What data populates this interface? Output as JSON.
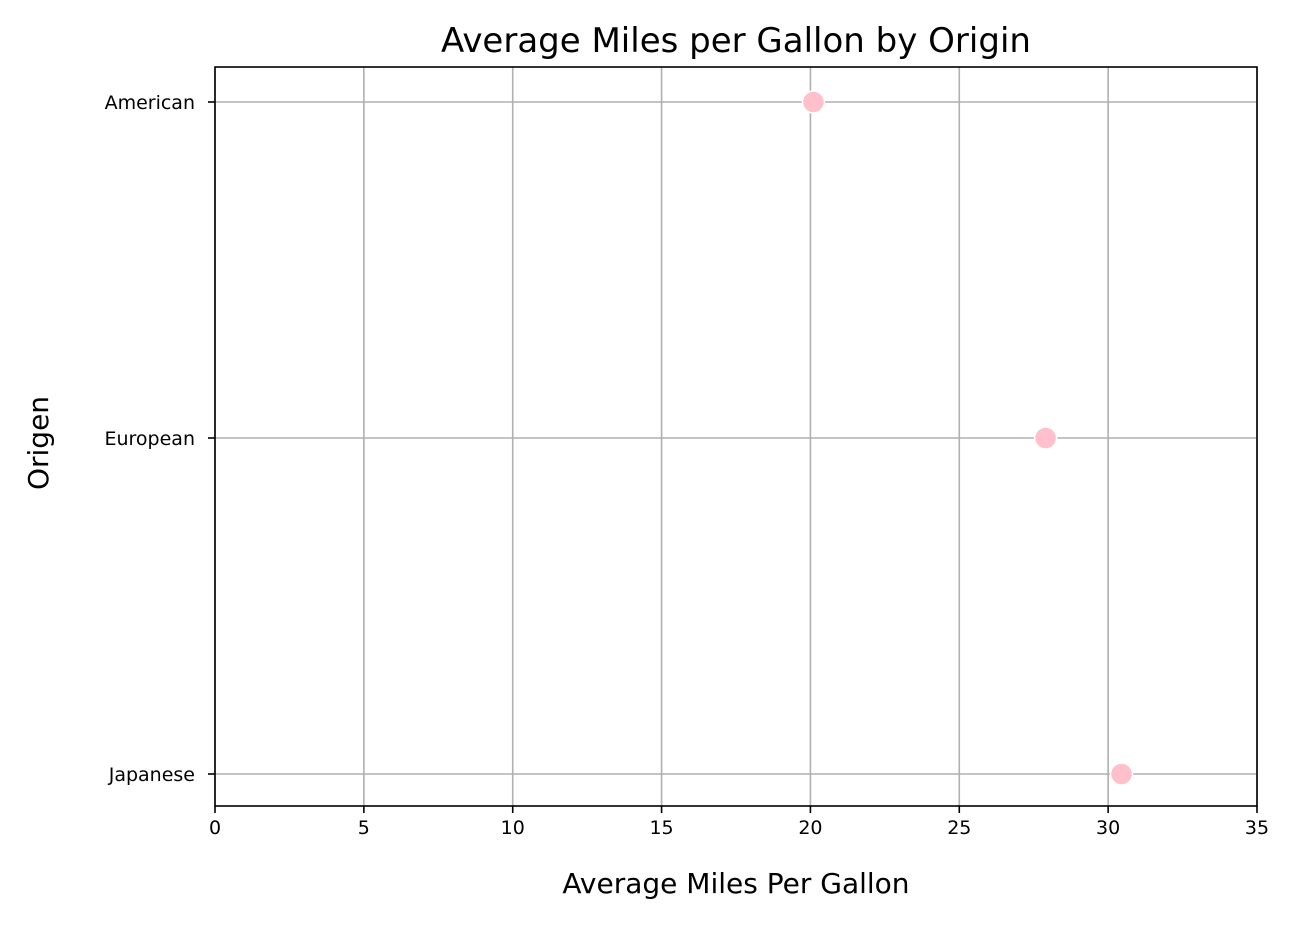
{
  "chart_data": {
    "type": "scatter",
    "title": "Average Miles per Gallon by Origin",
    "xlabel": "Average Miles Per Gallon",
    "ylabel": "Origen",
    "xlim": [
      0,
      35
    ],
    "xticks": [
      0,
      5,
      10,
      15,
      20,
      25,
      30,
      35
    ],
    "categories": [
      "American",
      "European",
      "Japanese"
    ],
    "values": [
      20.1,
      27.9,
      30.45
    ],
    "grid": true,
    "marker_color": "#ffc0cb",
    "grid_color": "#b0b0b0"
  }
}
